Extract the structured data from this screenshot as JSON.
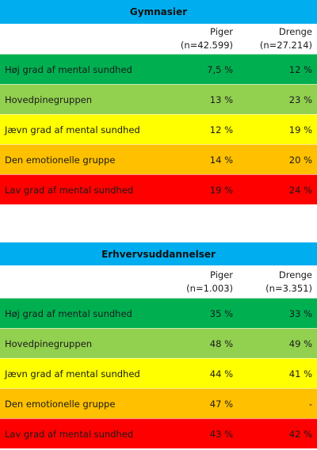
{
  "tables": [
    {
      "title": "Gymnasier",
      "col1_header": "Piger",
      "col1_sub": "(n=42.599)",
      "col2_header": "Drenge",
      "col2_sub": "(n=27.214)",
      "rows": [
        {
          "label": "Høj grad af mental sundhed",
          "v1": "7,5 %",
          "v2": "12 %",
          "color": "#00b050"
        },
        {
          "label": "Hovedpinegruppen",
          "v1": "13 %",
          "v2": "23 %",
          "color": "#92d050"
        },
        {
          "label": "Jævn grad af mental sundhed",
          "v1": "12 %",
          "v2": "19 %",
          "color": "#ffff00"
        },
        {
          "label": "Den emotionelle gruppe",
          "v1": "14 %",
          "v2": "20 %",
          "color": "#ffc000"
        },
        {
          "label": "Lav grad af mental sundhed",
          "v1": "19 %",
          "v2": "24 %",
          "color": "#ff0000"
        }
      ]
    },
    {
      "title": "Erhvervsuddannelser",
      "col1_header": "Piger",
      "col1_sub": "(n=1.003)",
      "col2_header": "Drenge",
      "col2_sub": "(n=3.351)",
      "rows": [
        {
          "label": "Høj grad af mental sundhed",
          "v1": "35 %",
          "v2": "33 %",
          "color": "#00b050"
        },
        {
          "label": "Hovedpinegruppen",
          "v1": "48 %",
          "v2": "49 %",
          "color": "#92d050"
        },
        {
          "label": "Jævn grad af mental sundhed",
          "v1": "44 %",
          "v2": "41 %",
          "color": "#ffff00"
        },
        {
          "label": "Den emotionelle gruppe",
          "v1": "47 %",
          "v2": "-",
          "color": "#ffc000"
        },
        {
          "label": "Lav grad af mental sundhed",
          "v1": "43 %",
          "v2": "42 %",
          "color": "#ff0000"
        }
      ]
    }
  ],
  "colors": {
    "title_bar": "#00aeef"
  }
}
